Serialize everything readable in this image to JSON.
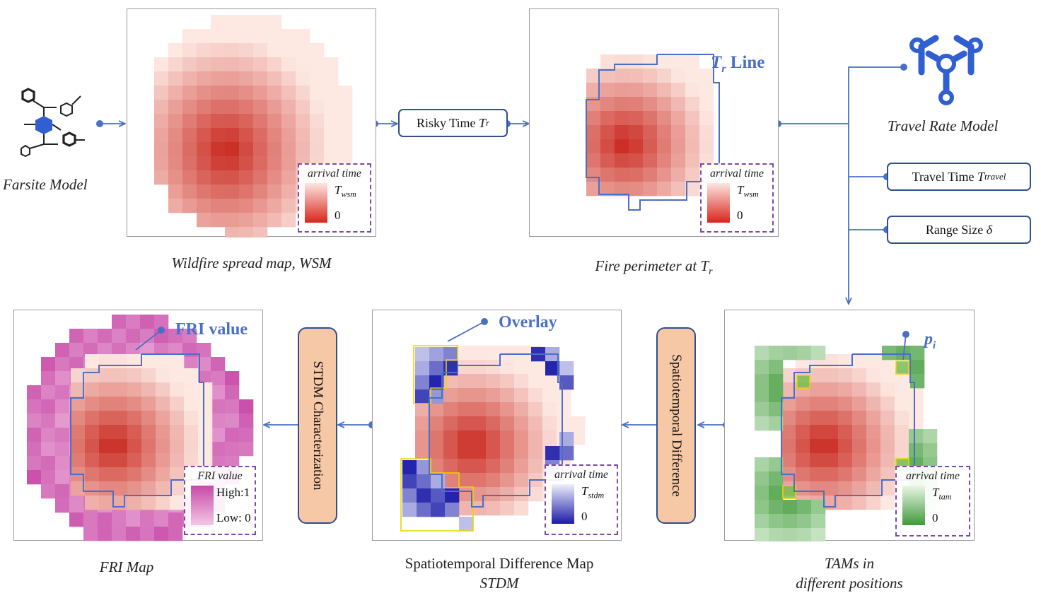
{
  "models": {
    "farsite": "Farsite Model",
    "travel_rate": "Travel Rate Model"
  },
  "boxes": {
    "risky_time": "Risky Time",
    "risky_time_sym": "T",
    "risky_time_sub": "r",
    "travel_time": "Travel Time",
    "travel_time_sym": "T",
    "travel_time_sub": "travel",
    "range_size": "Range Size",
    "range_size_sym": "δ",
    "stdm_char": "STDM Characterization",
    "spatiotemporal_diff": "Spatiotemporal Difference"
  },
  "annotations": {
    "tr_line_sym": "T",
    "tr_line_sub": "r",
    "tr_line_word": "Line",
    "overlay": "Overlay",
    "fri_value": "FRI value",
    "pi_sym": "p",
    "pi_sub": "i"
  },
  "legends": {
    "wsm": {
      "title": "arrival time",
      "high_sym": "T",
      "high_sub": "wsm",
      "low": "0"
    },
    "perimeter": {
      "title": "arrival time",
      "high_sym": "T",
      "high_sub": "wsm",
      "low": "0"
    },
    "tam": {
      "title": "arrival time",
      "high_sym": "T",
      "high_sub": "tam",
      "low": "0"
    },
    "stdm": {
      "title": "arrival time",
      "high_sym": "T",
      "high_sub": "stdm",
      "low": "0"
    },
    "fri": {
      "title": "FRI value",
      "high": "High:1",
      "low": "Low: 0"
    }
  },
  "captions": {
    "wsm": "Wildfire spread map, WSM",
    "perimeter": "Fire perimeter at",
    "perimeter_sym": "T",
    "perimeter_sub": "r",
    "tam_line1": "TAMs in",
    "tam_line2": "different positions",
    "stdm_line1": "Spatiotemporal Difference Map",
    "stdm_line2": "STDM",
    "fri": "FRI Map"
  },
  "colors": {
    "accent_line": "#4a6fc6",
    "box_border": "#2f4f8f",
    "process_fill": "#f6c8a6",
    "legend_border": "#7a4aa6",
    "fire_dark": "#c8251c",
    "tam_dark": "#3f9a3a",
    "stdm_dark": "#1a1aa8",
    "fri_dark": "#c74aa8"
  }
}
